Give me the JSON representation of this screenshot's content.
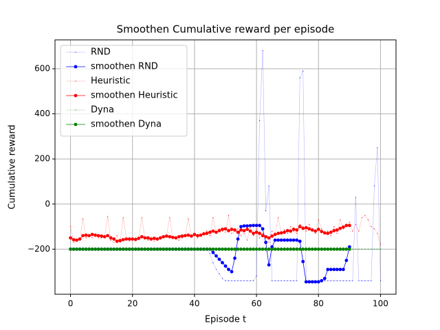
{
  "chart_data": {
    "type": "line",
    "title": "Smoothen Cumulative reward per episode",
    "x_label": "Episode t",
    "y_label": "Cumulative reward",
    "xlim": [
      -5,
      105
    ],
    "ylim": [
      -400,
      728
    ],
    "xticks": [
      0,
      20,
      40,
      60,
      80,
      100
    ],
    "yticks": [
      {
        "value": -200,
        "label": "−200"
      },
      0,
      200,
      400,
      600
    ],
    "grid": true,
    "legend": "upper left",
    "x": [
      0,
      1,
      2,
      3,
      4,
      5,
      6,
      7,
      8,
      9,
      10,
      11,
      12,
      13,
      14,
      15,
      16,
      17,
      18,
      19,
      20,
      21,
      22,
      23,
      24,
      25,
      26,
      27,
      28,
      29,
      30,
      31,
      32,
      33,
      34,
      35,
      36,
      37,
      38,
      39,
      40,
      41,
      42,
      43,
      44,
      45,
      46,
      47,
      48,
      49,
      50,
      51,
      52,
      53,
      54,
      55,
      56,
      57,
      58,
      59,
      60,
      61,
      62,
      63,
      64,
      65,
      66,
      67,
      68,
      69,
      70,
      71,
      72,
      73,
      74,
      75,
      76,
      77,
      78,
      79,
      80,
      81,
      82,
      83,
      84,
      85,
      86,
      87,
      88,
      89,
      90,
      91,
      92,
      93,
      94,
      95,
      96,
      97,
      98,
      99,
      100
    ],
    "series": [
      {
        "name": "RND",
        "color": "#0000ff",
        "style": "raw",
        "values": [
          -200,
          -200,
          -200,
          -200,
          -200,
          -200,
          -200,
          -200,
          -200,
          -200,
          -200,
          -200,
          -200,
          -200,
          -200,
          -200,
          -200,
          -200,
          -200,
          -200,
          -200,
          -200,
          -200,
          -200,
          -200,
          -200,
          -200,
          -200,
          -200,
          -200,
          -200,
          -200,
          -200,
          -200,
          -200,
          -200,
          -200,
          -200,
          -200,
          -200,
          -200,
          -200,
          -200,
          -200,
          -200,
          -220,
          -260,
          -290,
          -310,
          -330,
          -340,
          -340,
          -340,
          -340,
          -340,
          -340,
          -340,
          -340,
          -340,
          -340,
          -320,
          370,
          680,
          -30,
          80,
          -340,
          -340,
          -340,
          -340,
          -340,
          -340,
          -340,
          -340,
          -340,
          560,
          590,
          -340,
          -340,
          -340,
          -340,
          -340,
          -340,
          -340,
          -340,
          -340,
          -340,
          -340,
          -340,
          -340,
          -340,
          -340,
          -340,
          30,
          -340,
          -340,
          -340,
          -340,
          -340,
          80,
          250,
          -340
        ]
      },
      {
        "name": "smoothen RND",
        "color": "#0000ff",
        "style": "smooth",
        "values": [
          -200,
          -200,
          -200,
          -200,
          -200,
          -200,
          -200,
          -200,
          -200,
          -200,
          -200,
          -200,
          -200,
          -200,
          -200,
          -200,
          -200,
          -200,
          -200,
          -200,
          -200,
          -200,
          -200,
          -200,
          -200,
          -200,
          -200,
          -200,
          -200,
          -200,
          -200,
          -200,
          -200,
          -200,
          -200,
          -200,
          -200,
          -200,
          -200,
          -200,
          -200,
          -200,
          -200,
          -200,
          -200,
          -200,
          -215,
          -230,
          -245,
          -260,
          -275,
          -290,
          -300,
          -240,
          -155,
          -100,
          -97,
          -97,
          -96,
          -95,
          -95,
          -95,
          -110,
          -170,
          -270,
          -190,
          -160,
          -160,
          -160,
          -160,
          -160,
          -160,
          -160,
          -160,
          -165,
          -255,
          -345,
          -345,
          -345,
          -345,
          -345,
          -340,
          -330,
          -290,
          -290,
          -290,
          -290,
          -290,
          -290,
          -250,
          -190,
          null,
          null,
          null,
          null,
          null,
          null,
          null,
          null,
          null,
          null
        ]
      },
      {
        "name": "Heuristic",
        "color": "#ff0000",
        "style": "raw",
        "values": [
          -100,
          -170,
          -165,
          -160,
          -65,
          -150,
          -140,
          -150,
          -140,
          -150,
          -150,
          -145,
          -55,
          -160,
          -170,
          -140,
          -170,
          -60,
          -150,
          -165,
          -160,
          -150,
          -155,
          -60,
          -150,
          -160,
          -155,
          -165,
          -150,
          -155,
          -150,
          -140,
          -60,
          -150,
          -155,
          -160,
          -150,
          -145,
          -65,
          -140,
          -135,
          -150,
          -140,
          -130,
          -120,
          -140,
          -60,
          -130,
          -110,
          -120,
          -125,
          -50,
          -130,
          -120,
          -110,
          -140,
          -130,
          -160,
          -100,
          -140,
          -110,
          -150,
          -130,
          -140,
          -170,
          -120,
          -130,
          -60,
          -130,
          -115,
          -130,
          -100,
          -120,
          -130,
          -90,
          -100,
          -120,
          -90,
          -110,
          -130,
          -70,
          -110,
          -130,
          -120,
          -140,
          -100,
          -130,
          -70,
          -110,
          -100,
          -80,
          -120,
          -90,
          -120,
          -60,
          -50,
          -70,
          -100,
          -110,
          -130,
          -180
        ]
      },
      {
        "name": "smoothen Heuristic",
        "color": "#ff0000",
        "style": "smooth",
        "values": [
          -150,
          -158,
          -160,
          -155,
          -140,
          -138,
          -140,
          -135,
          -138,
          -140,
          -142,
          -145,
          -140,
          -150,
          -155,
          -165,
          -162,
          -158,
          -155,
          -155,
          -155,
          -157,
          -152,
          -145,
          -150,
          -150,
          -155,
          -152,
          -155,
          -150,
          -145,
          -142,
          -145,
          -148,
          -150,
          -145,
          -142,
          -140,
          -138,
          -142,
          -135,
          -140,
          -138,
          -132,
          -130,
          -125,
          -120,
          -125,
          -118,
          -112,
          -110,
          -118,
          -112,
          -115,
          -125,
          -115,
          -118,
          -112,
          -120,
          -130,
          -125,
          -130,
          -140,
          -145,
          -150,
          -142,
          -135,
          -130,
          -128,
          -125,
          -118,
          -120,
          -112,
          -115,
          -100,
          -108,
          -105,
          -110,
          -115,
          -120,
          -112,
          -122,
          -128,
          -130,
          -125,
          -118,
          -115,
          -108,
          -102,
          -95,
          -95,
          null,
          null,
          null,
          null,
          null,
          null,
          null,
          null,
          null,
          null
        ]
      },
      {
        "name": "Dyna",
        "color": "#008000",
        "style": "raw",
        "values": [
          -200,
          -200,
          -200,
          -200,
          -200,
          -200,
          -200,
          -200,
          -200,
          -200,
          -200,
          -200,
          -200,
          -200,
          -200,
          -200,
          -200,
          -200,
          -200,
          -200,
          -200,
          -200,
          -200,
          -200,
          -200,
          -200,
          -200,
          -200,
          -200,
          -200,
          -200,
          -200,
          -200,
          -200,
          -200,
          -200,
          -200,
          -200,
          -200,
          -200,
          -200,
          -200,
          -200,
          -200,
          -200,
          -200,
          -200,
          -200,
          -200,
          -200,
          -200,
          -200,
          -200,
          -200,
          -200,
          -200,
          -200,
          -200,
          -200,
          -200,
          -200,
          -200,
          -200,
          -200,
          -200,
          -200,
          -200,
          -200,
          -200,
          -200,
          -200,
          -200,
          -200,
          -200,
          -200,
          -200,
          -200,
          -200,
          -200,
          -200,
          -200,
          -200,
          -200,
          -200,
          -200,
          -200,
          -200,
          -200,
          -200,
          -200,
          -200,
          -200,
          -200,
          -200,
          -200,
          -200,
          -200,
          -200,
          -200,
          -200,
          -200
        ]
      },
      {
        "name": "smoothen Dyna",
        "color": "#008000",
        "style": "smooth",
        "values": [
          -200,
          -200,
          -200,
          -200,
          -200,
          -200,
          -200,
          -200,
          -200,
          -200,
          -200,
          -200,
          -200,
          -200,
          -200,
          -200,
          -200,
          -200,
          -200,
          -200,
          -200,
          -200,
          -200,
          -200,
          -200,
          -200,
          -200,
          -200,
          -200,
          -200,
          -200,
          -200,
          -200,
          -200,
          -200,
          -200,
          -200,
          -200,
          -200,
          -200,
          -200,
          -200,
          -200,
          -200,
          -200,
          -200,
          -200,
          -200,
          -200,
          -200,
          -200,
          -200,
          -200,
          -200,
          -200,
          -200,
          -200,
          -200,
          -200,
          -200,
          -200,
          -200,
          -200,
          -200,
          -200,
          -200,
          -200,
          -200,
          -200,
          -200,
          -200,
          -200,
          -200,
          -200,
          -200,
          -200,
          -200,
          -200,
          -200,
          -200,
          -200,
          -200,
          -200,
          -200,
          -200,
          -200,
          -200,
          -200,
          -200,
          -200,
          -200,
          null,
          null,
          null,
          null,
          null,
          null,
          null,
          null,
          null,
          null
        ]
      }
    ]
  }
}
